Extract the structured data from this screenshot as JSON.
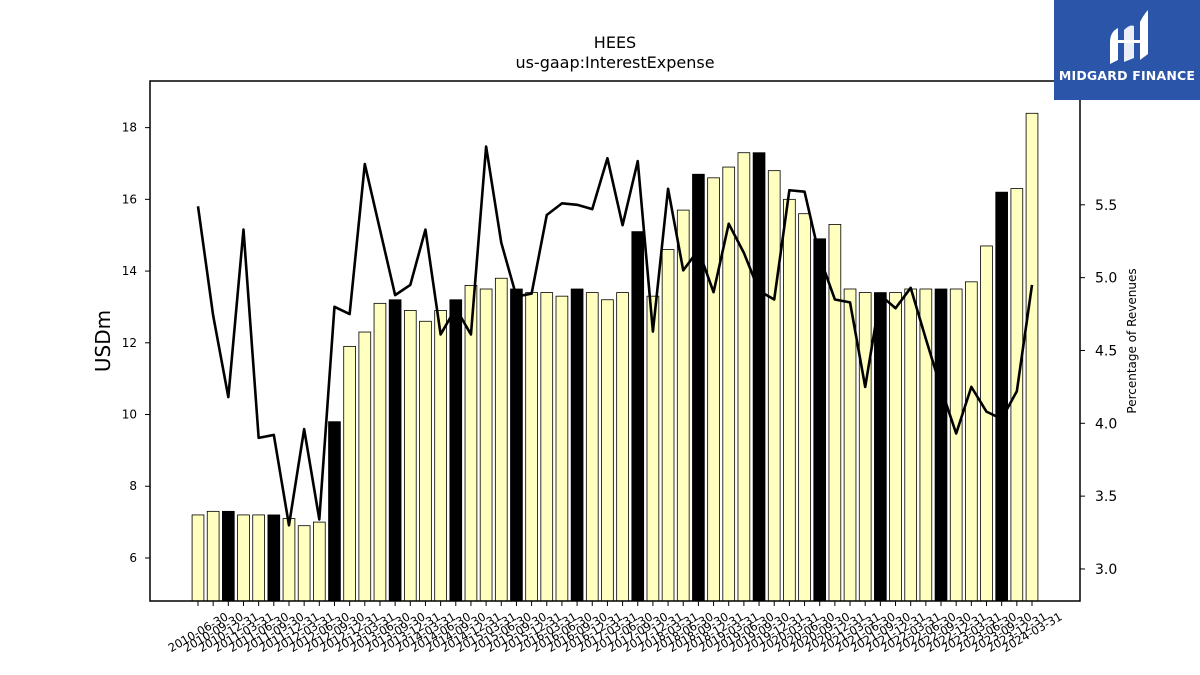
{
  "logo": {
    "text": "MIDGARD FINANCE",
    "icon": "midgard-logo-icon",
    "background": "#2b55a8"
  },
  "chart_data": {
    "type": "bar",
    "title": "HEES",
    "subtitle": "us-gaap:InterestExpense",
    "ylabel": "USDm",
    "y2label": "Percentage of Revenues",
    "ylim": [
      4.8,
      19.3
    ],
    "y2lim": [
      2.78,
      6.35
    ],
    "yticks": [
      6,
      8,
      10,
      12,
      14,
      16,
      18
    ],
    "y2ticks": [
      "3.0",
      "3.5",
      "4.0",
      "4.5",
      "5.0",
      "5.5"
    ],
    "categories": [
      "2010-06-30",
      "2010-09-30",
      "2010-12-31",
      "2011-03-31",
      "2011-06-30",
      "2011-09-30",
      "2011-12-31",
      "2012-03-31",
      "2012-06-30",
      "2012-09-30",
      "2012-12-31",
      "2013-03-31",
      "2013-06-30",
      "2013-09-30",
      "2013-12-31",
      "2014-03-31",
      "2014-06-30",
      "2014-09-30",
      "2014-12-31",
      "2015-03-31",
      "2015-06-30",
      "2015-09-30",
      "2015-12-31",
      "2016-03-31",
      "2016-06-30",
      "2016-09-30",
      "2016-12-31",
      "2017-03-31",
      "2017-06-30",
      "2017-09-30",
      "2017-12-31",
      "2018-03-31",
      "2018-06-30",
      "2018-09-30",
      "2018-12-31",
      "2019-03-31",
      "2019-06-30",
      "2019-09-30",
      "2019-12-31",
      "2020-03-31",
      "2020-06-30",
      "2020-09-30",
      "2020-12-31",
      "2021-03-31",
      "2021-06-30",
      "2021-09-30",
      "2021-12-31",
      "2022-03-31",
      "2022-06-30",
      "2022-09-30",
      "2022-12-31",
      "2023-03-31",
      "2023-06-30",
      "2023-09-30",
      "2023-12-31",
      "2024-03-31"
    ],
    "series": [
      {
        "type": "bar",
        "values": [
          7.2,
          7.3,
          7.3,
          7.2,
          7.2,
          7.2,
          7.1,
          6.9,
          7.0,
          9.8,
          11.9,
          12.3,
          13.1,
          13.2,
          12.9,
          12.6,
          12.9,
          13.2,
          13.6,
          13.5,
          13.8,
          13.5,
          13.4,
          13.4,
          13.3,
          13.5,
          13.4,
          13.2,
          13.4,
          15.1,
          13.3,
          14.6,
          15.7,
          16.7,
          16.6,
          16.9,
          17.3,
          17.3,
          16.8,
          16.0,
          15.6,
          14.9,
          15.3,
          13.5,
          13.4,
          13.4,
          13.4,
          13.5,
          13.5,
          13.5,
          13.5,
          13.7,
          14.7,
          16.2,
          16.3,
          18.4
        ],
        "colors": {
          "normal": "#ffffc0",
          "highlight": "#000000"
        },
        "highlighted_categories": [
          "2010-12-31",
          "2011-09-30",
          "2012-09-30",
          "2013-09-30",
          "2014-09-30",
          "2015-09-30",
          "2016-09-30",
          "2017-09-30",
          "2018-09-30",
          "2019-09-30",
          "2020-09-30",
          "2021-09-30",
          "2022-09-30",
          "2023-09-30"
        ]
      },
      {
        "type": "line",
        "axis": "right",
        "color": "#000000",
        "values": [
          5.49,
          4.74,
          4.18,
          5.33,
          3.9,
          3.92,
          3.3,
          3.96,
          3.34,
          4.8,
          4.75,
          5.78,
          5.33,
          4.88,
          4.95,
          5.33,
          4.61,
          4.79,
          4.61,
          5.9,
          5.24,
          4.87,
          4.89,
          5.43,
          5.51,
          5.5,
          5.47,
          5.82,
          5.36,
          5.8,
          4.63,
          5.61,
          5.05,
          5.19,
          4.9,
          5.37,
          5.17,
          4.91,
          4.85,
          5.6,
          5.59,
          5.14,
          4.85,
          4.83,
          4.25,
          4.88,
          4.79,
          4.93,
          4.58,
          4.24,
          3.93,
          4.25,
          4.08,
          4.03,
          4.22,
          4.95
        ]
      }
    ],
    "grid": false
  }
}
